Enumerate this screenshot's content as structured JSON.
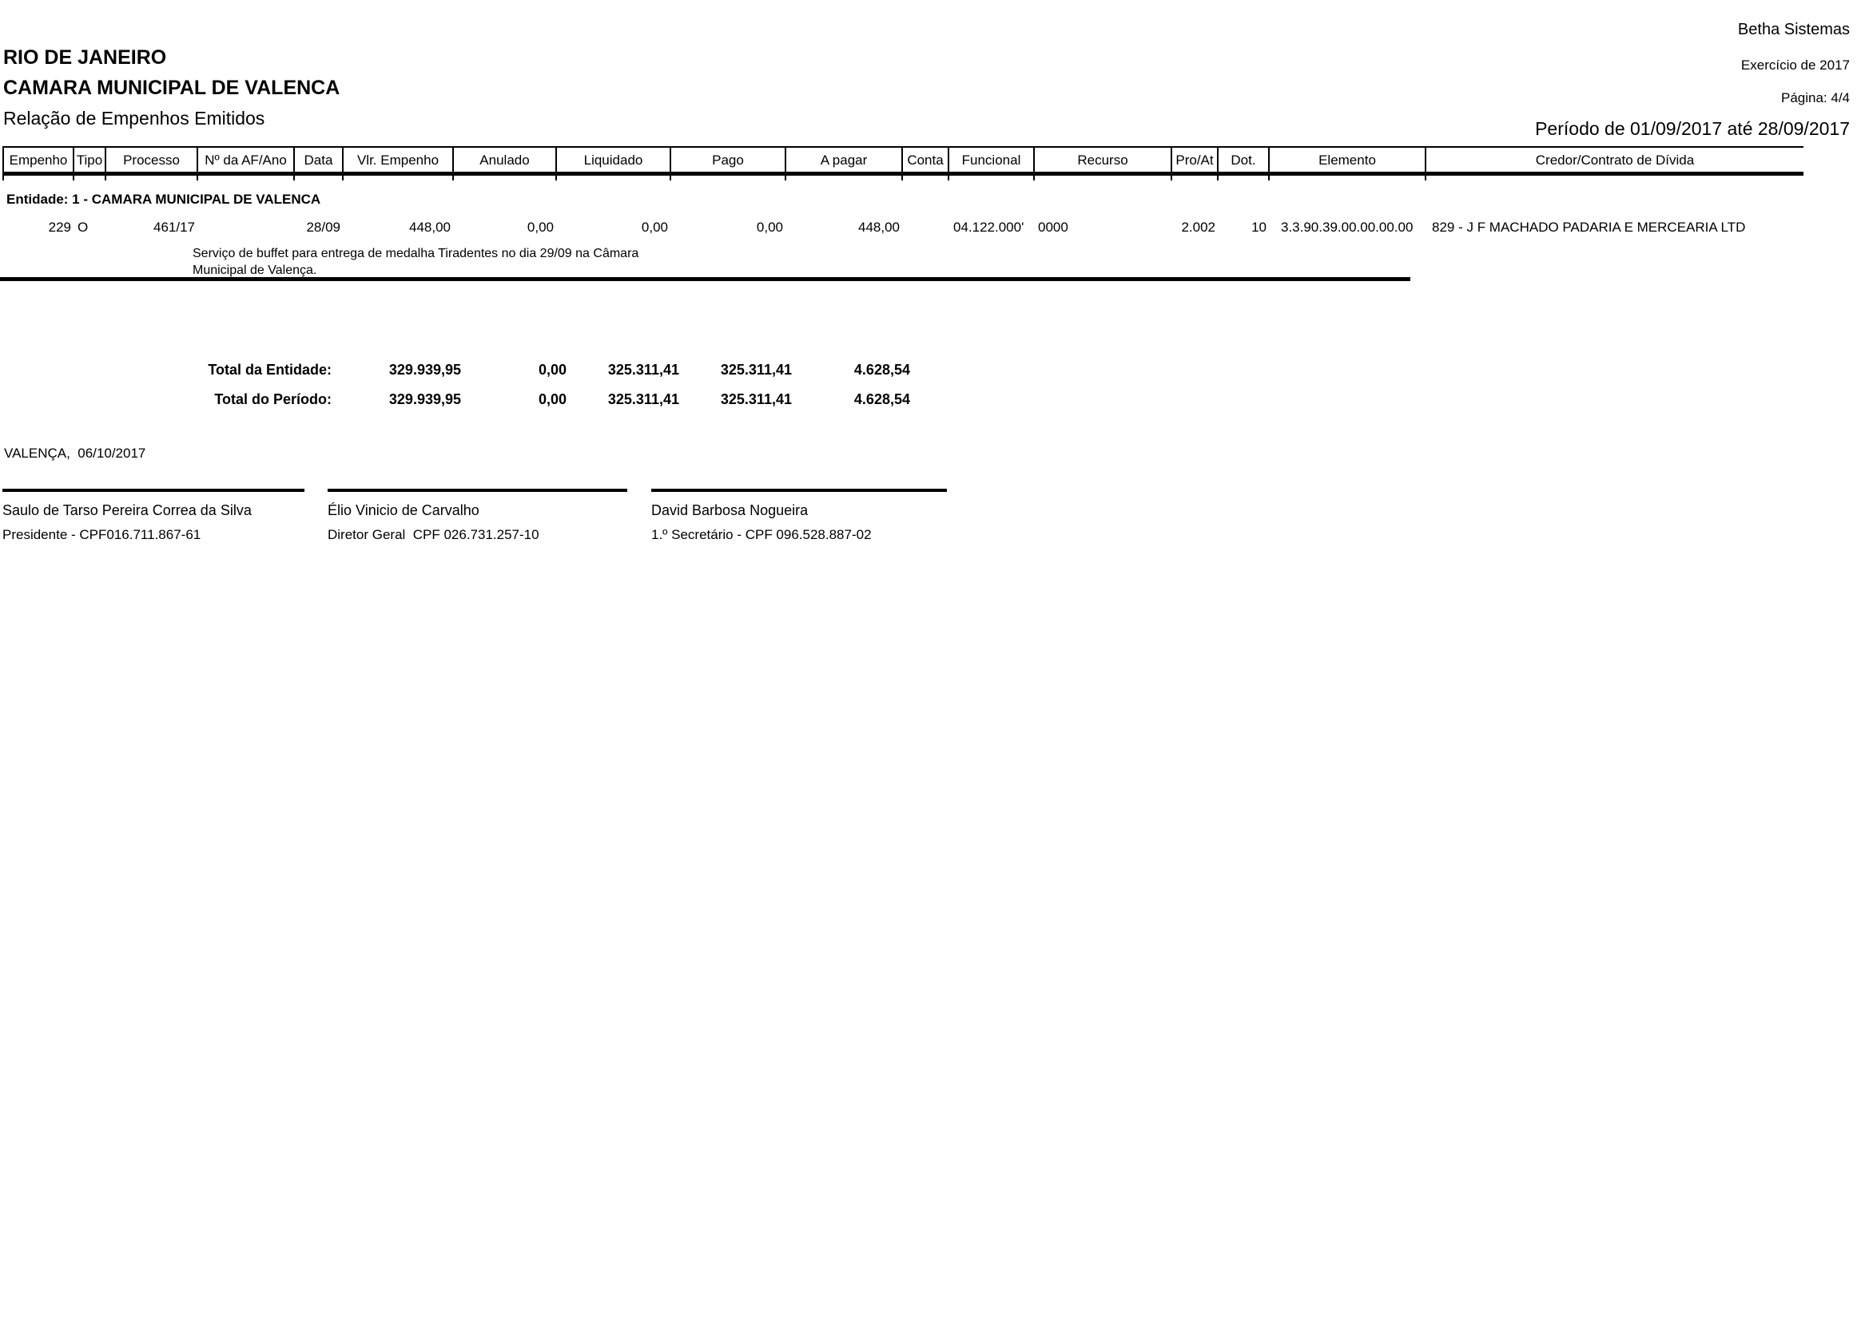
{
  "header": {
    "vendor": "Betha Sistemas",
    "state": "RIO DE JANEIRO",
    "entity": "CAMARA MUNICIPAL DE VALENCA",
    "report_title": "Relação de Empenhos Emitidos",
    "exercise": "Exercício de 2017",
    "page": "Página: 4/4",
    "period": "Período de 01/09/2017 até 28/09/2017"
  },
  "table": {
    "columns": [
      "Empenho",
      "Tipo",
      "Processo",
      "Nº da AF/Ano",
      "Data",
      "Vlr. Empenho",
      "Anulado",
      "Liquidado",
      "Pago",
      "A pagar",
      "Conta",
      "Funcional",
      "Recurso",
      "Pro/At",
      "Dot.",
      "Elemento",
      "Credor/Contrato de Dívida"
    ],
    "entity_line": "Entidade: 1 - CAMARA MUNICIPAL DE VALENCA",
    "row": {
      "empenho": "229",
      "tipo": "O",
      "processo": "461/17",
      "af_ano": "",
      "data": "28/09",
      "vlr_empenho": "448,00",
      "anulado": "0,00",
      "liquidado": "0,00",
      "pago": "0,00",
      "a_pagar": "448,00",
      "conta": "",
      "funcional": "04.122.000'",
      "recurso": "0000",
      "pro_at": "2.002",
      "dot": "10",
      "elemento": "3.3.90.39.00.00.00.00",
      "credor": "829 - J F MACHADO PADARIA E MERCEARIA LTD",
      "descricao": "Serviço de buffet para entrega de medalha Tiradentes no dia 29/09 na Câmara Municipal de Valença."
    }
  },
  "totals": {
    "entity": {
      "label": "Total da Entidade:",
      "vlr_empenho": "329.939,95",
      "anulado": "0,00",
      "liquidado": "325.311,41",
      "pago": "325.311,41",
      "a_pagar": "4.628,54"
    },
    "period": {
      "label": "Total do Período:",
      "vlr_empenho": "329.939,95",
      "anulado": "0,00",
      "liquidado": "325.311,41",
      "pago": "325.311,41",
      "a_pagar": "4.628,54"
    }
  },
  "footer": {
    "place_date": "VALENÇA,  06/10/2017",
    "signatures": [
      {
        "name": "Saulo de Tarso Pereira Correa da Silva",
        "title": "Presidente - CPF016.711.867-61"
      },
      {
        "name": "Élio Vinicio de Carvalho",
        "title": "Diretor Geral  CPF 026.731.257-10"
      },
      {
        "name": "David Barbosa Nogueira",
        "title": "1.º Secretário - CPF 096.528.887-02"
      }
    ]
  }
}
